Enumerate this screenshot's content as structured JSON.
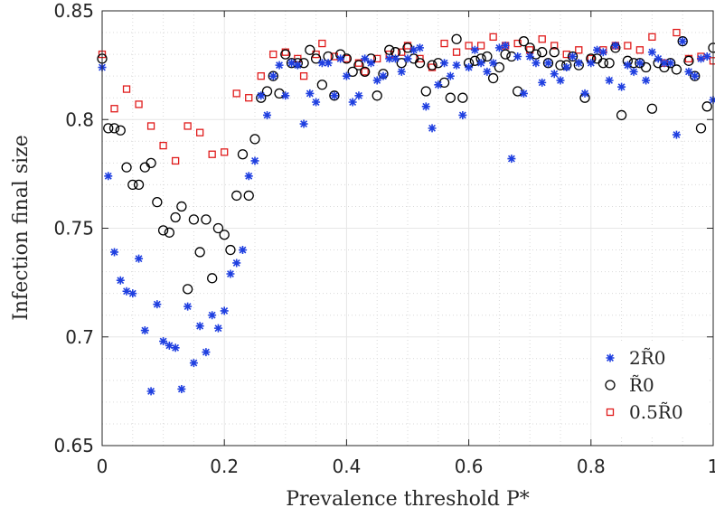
{
  "chart_data": {
    "type": "scatter",
    "xlabel": "Prevalence threshold P*",
    "ylabel": "Infection final size",
    "xlim": [
      0,
      1
    ],
    "ylim": [
      0.65,
      0.85
    ],
    "xticks": [
      0,
      0.2,
      0.4,
      0.6,
      0.8,
      1
    ],
    "xtick_labels": [
      "0",
      "0.2",
      "0.4",
      "0.6",
      "0.8",
      "1"
    ],
    "yticks": [
      0.65,
      0.7,
      0.75,
      0.8,
      0.85
    ],
    "ytick_labels": [
      "0.65",
      "0.7",
      "0.75",
      "0.8",
      "0.85"
    ],
    "grid": "major and minor, dotted",
    "legend_position": "bottom-right",
    "series": [
      {
        "name": "2R̃0",
        "marker": "asterisk",
        "color": "#1f3fe0",
        "points": [
          [
            0.0,
            0.824
          ],
          [
            0.01,
            0.774
          ],
          [
            0.02,
            0.739
          ],
          [
            0.03,
            0.726
          ],
          [
            0.04,
            0.721
          ],
          [
            0.05,
            0.72
          ],
          [
            0.06,
            0.736
          ],
          [
            0.07,
            0.703
          ],
          [
            0.08,
            0.675
          ],
          [
            0.09,
            0.715
          ],
          [
            0.1,
            0.698
          ],
          [
            0.11,
            0.696
          ],
          [
            0.12,
            0.695
          ],
          [
            0.13,
            0.676
          ],
          [
            0.14,
            0.714
          ],
          [
            0.15,
            0.688
          ],
          [
            0.16,
            0.705
          ],
          [
            0.17,
            0.693
          ],
          [
            0.18,
            0.71
          ],
          [
            0.19,
            0.704
          ],
          [
            0.2,
            0.712
          ],
          [
            0.21,
            0.729
          ],
          [
            0.22,
            0.734
          ],
          [
            0.23,
            0.74
          ],
          [
            0.24,
            0.774
          ],
          [
            0.25,
            0.781
          ],
          [
            0.26,
            0.811
          ],
          [
            0.27,
            0.802
          ],
          [
            0.28,
            0.82
          ],
          [
            0.29,
            0.825
          ],
          [
            0.3,
            0.811
          ],
          [
            0.31,
            0.826
          ],
          [
            0.32,
            0.825
          ],
          [
            0.33,
            0.798
          ],
          [
            0.34,
            0.812
          ],
          [
            0.35,
            0.808
          ],
          [
            0.36,
            0.826
          ],
          [
            0.37,
            0.826
          ],
          [
            0.38,
            0.811
          ],
          [
            0.39,
            0.828
          ],
          [
            0.4,
            0.82
          ],
          [
            0.41,
            0.808
          ],
          [
            0.42,
            0.811
          ],
          [
            0.43,
            0.828
          ],
          [
            0.44,
            0.826
          ],
          [
            0.45,
            0.818
          ],
          [
            0.46,
            0.82
          ],
          [
            0.47,
            0.828
          ],
          [
            0.48,
            0.828
          ],
          [
            0.49,
            0.822
          ],
          [
            0.5,
            0.828
          ],
          [
            0.51,
            0.832
          ],
          [
            0.52,
            0.833
          ],
          [
            0.53,
            0.806
          ],
          [
            0.54,
            0.796
          ],
          [
            0.55,
            0.816
          ],
          [
            0.56,
            0.826
          ],
          [
            0.57,
            0.82
          ],
          [
            0.58,
            0.825
          ],
          [
            0.59,
            0.802
          ],
          [
            0.6,
            0.824
          ],
          [
            0.61,
            0.832
          ],
          [
            0.62,
            0.826
          ],
          [
            0.63,
            0.822
          ],
          [
            0.64,
            0.826
          ],
          [
            0.65,
            0.833
          ],
          [
            0.66,
            0.834
          ],
          [
            0.67,
            0.782
          ],
          [
            0.68,
            0.829
          ],
          [
            0.69,
            0.812
          ],
          [
            0.7,
            0.829
          ],
          [
            0.71,
            0.826
          ],
          [
            0.72,
            0.817
          ],
          [
            0.73,
            0.826
          ],
          [
            0.74,
            0.821
          ],
          [
            0.75,
            0.818
          ],
          [
            0.76,
            0.824
          ],
          [
            0.77,
            0.829
          ],
          [
            0.78,
            0.826
          ],
          [
            0.79,
            0.812
          ],
          [
            0.8,
            0.826
          ],
          [
            0.81,
            0.832
          ],
          [
            0.82,
            0.831
          ],
          [
            0.83,
            0.818
          ],
          [
            0.84,
            0.834
          ],
          [
            0.85,
            0.815
          ],
          [
            0.86,
            0.825
          ],
          [
            0.87,
            0.822
          ],
          [
            0.88,
            0.826
          ],
          [
            0.89,
            0.818
          ],
          [
            0.9,
            0.831
          ],
          [
            0.91,
            0.828
          ],
          [
            0.92,
            0.826
          ],
          [
            0.93,
            0.826
          ],
          [
            0.94,
            0.793
          ],
          [
            0.95,
            0.836
          ],
          [
            0.96,
            0.822
          ],
          [
            0.97,
            0.82
          ],
          [
            0.98,
            0.828
          ],
          [
            0.99,
            0.829
          ],
          [
            1.0,
            0.809
          ]
        ]
      },
      {
        "name": "R̃0",
        "marker": "circle",
        "color": "#000000",
        "points": [
          [
            0.0,
            0.828
          ],
          [
            0.01,
            0.796
          ],
          [
            0.02,
            0.796
          ],
          [
            0.03,
            0.795
          ],
          [
            0.04,
            0.778
          ],
          [
            0.05,
            0.77
          ],
          [
            0.06,
            0.77
          ],
          [
            0.07,
            0.778
          ],
          [
            0.08,
            0.78
          ],
          [
            0.09,
            0.762
          ],
          [
            0.1,
            0.749
          ],
          [
            0.11,
            0.748
          ],
          [
            0.12,
            0.755
          ],
          [
            0.13,
            0.76
          ],
          [
            0.14,
            0.722
          ],
          [
            0.15,
            0.754
          ],
          [
            0.16,
            0.739
          ],
          [
            0.17,
            0.754
          ],
          [
            0.18,
            0.727
          ],
          [
            0.19,
            0.75
          ],
          [
            0.2,
            0.747
          ],
          [
            0.21,
            0.74
          ],
          [
            0.22,
            0.765
          ],
          [
            0.23,
            0.784
          ],
          [
            0.24,
            0.765
          ],
          [
            0.25,
            0.791
          ],
          [
            0.26,
            0.81
          ],
          [
            0.27,
            0.813
          ],
          [
            0.28,
            0.82
          ],
          [
            0.29,
            0.812
          ],
          [
            0.3,
            0.83
          ],
          [
            0.31,
            0.826
          ],
          [
            0.32,
            0.826
          ],
          [
            0.33,
            0.826
          ],
          [
            0.34,
            0.832
          ],
          [
            0.35,
            0.828
          ],
          [
            0.36,
            0.816
          ],
          [
            0.37,
            0.829
          ],
          [
            0.38,
            0.811
          ],
          [
            0.39,
            0.83
          ],
          [
            0.4,
            0.828
          ],
          [
            0.41,
            0.822
          ],
          [
            0.42,
            0.825
          ],
          [
            0.43,
            0.822
          ],
          [
            0.44,
            0.828
          ],
          [
            0.45,
            0.811
          ],
          [
            0.46,
            0.821
          ],
          [
            0.47,
            0.832
          ],
          [
            0.48,
            0.831
          ],
          [
            0.49,
            0.826
          ],
          [
            0.5,
            0.833
          ],
          [
            0.51,
            0.828
          ],
          [
            0.52,
            0.826
          ],
          [
            0.53,
            0.813
          ],
          [
            0.54,
            0.825
          ],
          [
            0.55,
            0.826
          ],
          [
            0.56,
            0.817
          ],
          [
            0.57,
            0.81
          ],
          [
            0.58,
            0.837
          ],
          [
            0.59,
            0.81
          ],
          [
            0.6,
            0.826
          ],
          [
            0.61,
            0.827
          ],
          [
            0.62,
            0.828
          ],
          [
            0.63,
            0.829
          ],
          [
            0.64,
            0.819
          ],
          [
            0.65,
            0.824
          ],
          [
            0.66,
            0.83
          ],
          [
            0.67,
            0.829
          ],
          [
            0.68,
            0.813
          ],
          [
            0.69,
            0.836
          ],
          [
            0.7,
            0.833
          ],
          [
            0.71,
            0.83
          ],
          [
            0.72,
            0.831
          ],
          [
            0.73,
            0.826
          ],
          [
            0.74,
            0.831
          ],
          [
            0.75,
            0.825
          ],
          [
            0.76,
            0.825
          ],
          [
            0.77,
            0.829
          ],
          [
            0.78,
            0.825
          ],
          [
            0.79,
            0.81
          ],
          [
            0.8,
            0.828
          ],
          [
            0.81,
            0.828
          ],
          [
            0.82,
            0.826
          ],
          [
            0.83,
            0.826
          ],
          [
            0.84,
            0.833
          ],
          [
            0.85,
            0.802
          ],
          [
            0.86,
            0.827
          ],
          [
            0.87,
            0.826
          ],
          [
            0.88,
            0.826
          ],
          [
            0.89,
            0.824
          ],
          [
            0.9,
            0.805
          ],
          [
            0.91,
            0.826
          ],
          [
            0.92,
            0.824
          ],
          [
            0.93,
            0.826
          ],
          [
            0.94,
            0.823
          ],
          [
            0.95,
            0.836
          ],
          [
            0.96,
            0.827
          ],
          [
            0.97,
            0.82
          ],
          [
            0.98,
            0.796
          ],
          [
            0.99,
            0.806
          ],
          [
            1.0,
            0.833
          ]
        ]
      },
      {
        "name": "0.5R̃0",
        "marker": "square",
        "color": "#e01b1b",
        "points": [
          [
            0.0,
            0.83
          ],
          [
            0.02,
            0.805
          ],
          [
            0.04,
            0.814
          ],
          [
            0.06,
            0.807
          ],
          [
            0.08,
            0.797
          ],
          [
            0.1,
            0.788
          ],
          [
            0.12,
            0.781
          ],
          [
            0.14,
            0.797
          ],
          [
            0.16,
            0.794
          ],
          [
            0.18,
            0.784
          ],
          [
            0.2,
            0.785
          ],
          [
            0.22,
            0.812
          ],
          [
            0.24,
            0.81
          ],
          [
            0.26,
            0.82
          ],
          [
            0.28,
            0.83
          ],
          [
            0.3,
            0.831
          ],
          [
            0.32,
            0.828
          ],
          [
            0.33,
            0.82
          ],
          [
            0.35,
            0.83
          ],
          [
            0.36,
            0.835
          ],
          [
            0.38,
            0.829
          ],
          [
            0.4,
            0.828
          ],
          [
            0.42,
            0.826
          ],
          [
            0.43,
            0.822
          ],
          [
            0.45,
            0.828
          ],
          [
            0.47,
            0.83
          ],
          [
            0.49,
            0.831
          ],
          [
            0.5,
            0.834
          ],
          [
            0.52,
            0.828
          ],
          [
            0.54,
            0.824
          ],
          [
            0.56,
            0.835
          ],
          [
            0.58,
            0.831
          ],
          [
            0.6,
            0.834
          ],
          [
            0.62,
            0.834
          ],
          [
            0.64,
            0.838
          ],
          [
            0.66,
            0.834
          ],
          [
            0.68,
            0.835
          ],
          [
            0.7,
            0.832
          ],
          [
            0.72,
            0.837
          ],
          [
            0.74,
            0.834
          ],
          [
            0.76,
            0.83
          ],
          [
            0.78,
            0.832
          ],
          [
            0.8,
            0.828
          ],
          [
            0.82,
            0.832
          ],
          [
            0.84,
            0.834
          ],
          [
            0.86,
            0.834
          ],
          [
            0.88,
            0.832
          ],
          [
            0.9,
            0.838
          ],
          [
            0.92,
            0.826
          ],
          [
            0.94,
            0.84
          ],
          [
            0.96,
            0.828
          ],
          [
            0.98,
            0.829
          ],
          [
            1.0,
            0.827
          ]
        ]
      }
    ]
  }
}
